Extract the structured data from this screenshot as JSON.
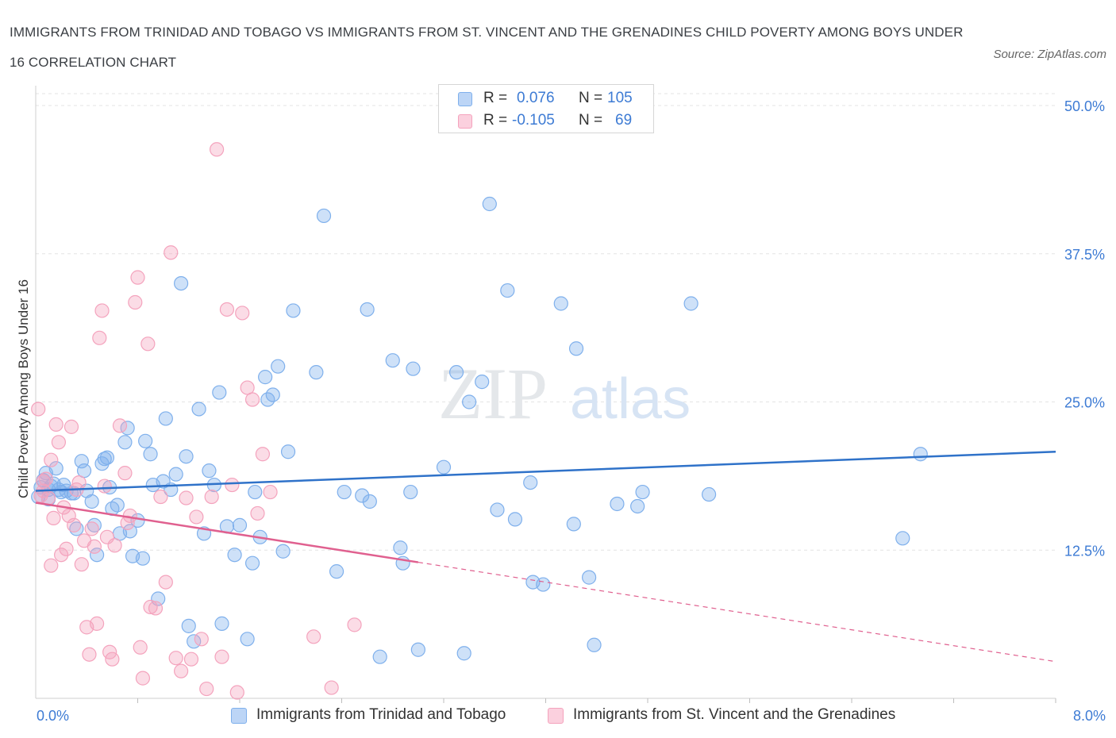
{
  "title": "IMMIGRANTS FROM TRINIDAD AND TOBAGO VS IMMIGRANTS FROM ST. VINCENT AND THE GRENADINES CHILD POVERTY AMONG BOYS UNDER 16 CORRELATION CHART",
  "source": "Source: ZipAtlas.com",
  "watermark": {
    "zip": "ZIP",
    "atlas": "atlas"
  },
  "legend": {
    "r_label": "R =",
    "n_label": "N =",
    "rows": [
      {
        "r": "0.076",
        "n": "105",
        "color": "#7fb0ec"
      },
      {
        "r": "-0.105",
        "n": "69",
        "color": "#f4a3bd"
      }
    ]
  },
  "chart_data": {
    "type": "scatter",
    "xlabel": "",
    "ylabel": "Child Poverty Among Boys Under 16",
    "xlim": [
      0,
      8
    ],
    "ylim": [
      0,
      50
    ],
    "x_tick_labels": [
      "0.0%",
      "8.0%"
    ],
    "y_tick_labels": [
      "12.5%",
      "25.0%",
      "37.5%",
      "50.0%"
    ],
    "y_ticks": [
      12.5,
      25,
      37.5,
      50
    ],
    "grid": true,
    "series": [
      {
        "name": "Immigrants from Trinidad and Tobago",
        "color": "#7fb0ec",
        "line_color": "#2f72c9",
        "trend": {
          "x": [
            0.0,
            8.0
          ],
          "y": [
            17.5,
            20.8
          ],
          "dashed_from": null
        },
        "points": [
          [
            0.04,
            17.8
          ],
          [
            0.06,
            18.4
          ],
          [
            0.08,
            19.0
          ],
          [
            0.1,
            17.6
          ],
          [
            0.12,
            17.9
          ],
          [
            0.14,
            18.1
          ],
          [
            0.16,
            19.4
          ],
          [
            0.18,
            17.6
          ],
          [
            0.2,
            17.4
          ],
          [
            0.22,
            18.0
          ],
          [
            0.24,
            17.5
          ],
          [
            0.28,
            17.3
          ],
          [
            0.3,
            17.3
          ],
          [
            0.32,
            14.3
          ],
          [
            0.36,
            20.0
          ],
          [
            0.38,
            19.2
          ],
          [
            0.4,
            17.5
          ],
          [
            0.44,
            16.6
          ],
          [
            0.46,
            14.6
          ],
          [
            0.48,
            12.1
          ],
          [
            0.52,
            19.8
          ],
          [
            0.54,
            20.2
          ],
          [
            0.56,
            20.3
          ],
          [
            0.58,
            17.8
          ],
          [
            0.6,
            16.0
          ],
          [
            0.64,
            16.3
          ],
          [
            0.66,
            13.9
          ],
          [
            0.7,
            21.6
          ],
          [
            0.72,
            22.8
          ],
          [
            0.74,
            14.1
          ],
          [
            0.76,
            12.0
          ],
          [
            0.8,
            15.0
          ],
          [
            0.84,
            11.8
          ],
          [
            0.86,
            21.7
          ],
          [
            0.9,
            20.6
          ],
          [
            0.92,
            18.0
          ],
          [
            0.96,
            8.4
          ],
          [
            1.0,
            18.3
          ],
          [
            1.02,
            23.6
          ],
          [
            1.06,
            17.6
          ],
          [
            1.1,
            18.9
          ],
          [
            1.14,
            35.0
          ],
          [
            1.18,
            20.4
          ],
          [
            1.2,
            6.1
          ],
          [
            1.24,
            4.8
          ],
          [
            1.28,
            24.4
          ],
          [
            1.32,
            13.9
          ],
          [
            1.36,
            19.2
          ],
          [
            1.4,
            18.0
          ],
          [
            1.44,
            25.8
          ],
          [
            1.46,
            6.3
          ],
          [
            1.5,
            14.5
          ],
          [
            1.56,
            12.1
          ],
          [
            1.6,
            14.6
          ],
          [
            1.66,
            5.0
          ],
          [
            1.7,
            11.4
          ],
          [
            1.72,
            17.4
          ],
          [
            1.76,
            13.6
          ],
          [
            1.8,
            27.1
          ],
          [
            1.82,
            25.2
          ],
          [
            1.86,
            25.6
          ],
          [
            1.9,
            28.0
          ],
          [
            1.94,
            12.4
          ],
          [
            1.98,
            20.8
          ],
          [
            2.02,
            32.7
          ],
          [
            2.2,
            27.5
          ],
          [
            2.26,
            40.7
          ],
          [
            2.36,
            10.7
          ],
          [
            2.42,
            17.4
          ],
          [
            2.56,
            17.1
          ],
          [
            2.6,
            32.8
          ],
          [
            2.62,
            16.6
          ],
          [
            2.7,
            3.5
          ],
          [
            2.8,
            28.5
          ],
          [
            2.86,
            12.7
          ],
          [
            2.88,
            11.4
          ],
          [
            2.94,
            17.4
          ],
          [
            2.96,
            27.8
          ],
          [
            3.0,
            4.1
          ],
          [
            3.2,
            19.5
          ],
          [
            3.3,
            27.5
          ],
          [
            3.36,
            3.8
          ],
          [
            3.4,
            25.0
          ],
          [
            3.5,
            26.7
          ],
          [
            3.56,
            41.7
          ],
          [
            3.62,
            15.9
          ],
          [
            3.7,
            34.4
          ],
          [
            3.76,
            15.1
          ],
          [
            3.88,
            18.2
          ],
          [
            3.9,
            9.8
          ],
          [
            3.98,
            9.6
          ],
          [
            4.12,
            33.3
          ],
          [
            4.22,
            14.7
          ],
          [
            4.24,
            29.5
          ],
          [
            4.34,
            10.2
          ],
          [
            4.38,
            4.5
          ],
          [
            4.56,
            16.4
          ],
          [
            4.72,
            16.2
          ],
          [
            4.76,
            17.4
          ],
          [
            5.14,
            33.3
          ],
          [
            5.28,
            17.2
          ],
          [
            6.8,
            13.5
          ],
          [
            6.94,
            20.6
          ],
          [
            0.02,
            17.0
          ],
          [
            0.1,
            16.8
          ]
        ]
      },
      {
        "name": "Immigrants from St. Vincent and the Grenadines",
        "color": "#f4a3bd",
        "line_color": "#e0608f",
        "trend": {
          "x": [
            0.0,
            8.0
          ],
          "y": [
            16.5,
            3.1
          ],
          "dashed_from": 3.0
        },
        "points": [
          [
            0.02,
            24.4
          ],
          [
            0.04,
            17.1
          ],
          [
            0.06,
            17.5
          ],
          [
            0.08,
            18.5
          ],
          [
            0.1,
            16.9
          ],
          [
            0.12,
            11.2
          ],
          [
            0.14,
            15.2
          ],
          [
            0.16,
            23.1
          ],
          [
            0.18,
            21.6
          ],
          [
            0.2,
            12.1
          ],
          [
            0.22,
            16.1
          ],
          [
            0.24,
            12.6
          ],
          [
            0.26,
            15.4
          ],
          [
            0.28,
            22.9
          ],
          [
            0.3,
            14.6
          ],
          [
            0.32,
            17.6
          ],
          [
            0.34,
            18.2
          ],
          [
            0.36,
            11.3
          ],
          [
            0.38,
            13.3
          ],
          [
            0.4,
            6.0
          ],
          [
            0.42,
            3.7
          ],
          [
            0.44,
            14.3
          ],
          [
            0.46,
            12.8
          ],
          [
            0.48,
            6.3
          ],
          [
            0.5,
            30.4
          ],
          [
            0.52,
            32.7
          ],
          [
            0.54,
            17.9
          ],
          [
            0.56,
            13.6
          ],
          [
            0.58,
            3.9
          ],
          [
            0.6,
            3.3
          ],
          [
            0.62,
            12.9
          ],
          [
            0.66,
            23.0
          ],
          [
            0.7,
            19.0
          ],
          [
            0.72,
            14.8
          ],
          [
            0.74,
            15.4
          ],
          [
            0.78,
            33.4
          ],
          [
            0.8,
            35.5
          ],
          [
            0.82,
            4.3
          ],
          [
            0.84,
            1.7
          ],
          [
            0.88,
            29.9
          ],
          [
            0.9,
            7.7
          ],
          [
            0.94,
            7.6
          ],
          [
            0.98,
            17.0
          ],
          [
            1.02,
            9.8
          ],
          [
            1.06,
            37.6
          ],
          [
            1.1,
            3.4
          ],
          [
            1.14,
            2.3
          ],
          [
            1.18,
            16.9
          ],
          [
            1.22,
            3.3
          ],
          [
            1.26,
            15.3
          ],
          [
            1.3,
            5.0
          ],
          [
            1.34,
            0.8
          ],
          [
            1.38,
            17.0
          ],
          [
            1.42,
            46.3
          ],
          [
            1.46,
            3.5
          ],
          [
            1.5,
            32.8
          ],
          [
            1.54,
            18.0
          ],
          [
            1.58,
            0.5
          ],
          [
            1.62,
            32.5
          ],
          [
            1.66,
            26.2
          ],
          [
            1.7,
            25.2
          ],
          [
            1.74,
            15.6
          ],
          [
            1.78,
            20.6
          ],
          [
            1.84,
            17.4
          ],
          [
            2.18,
            5.2
          ],
          [
            2.32,
            0.9
          ],
          [
            2.5,
            6.2
          ],
          [
            0.06,
            18.3
          ],
          [
            0.12,
            20.1
          ]
        ]
      }
    ]
  }
}
